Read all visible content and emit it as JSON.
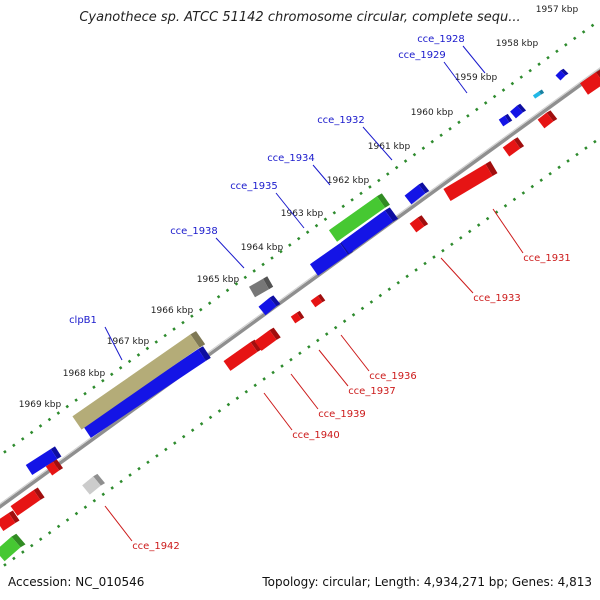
{
  "title": "Cyanothece sp. ATCC 51142 chromosome circular, complete sequ...",
  "footer": {
    "accession": "Accession: NC_010546",
    "summary": "Topology: circular; Length: 4,934,271 bp; Genes: 4,813"
  },
  "colors": {
    "backbone": "#8f8f8f",
    "tick": "#2e8b2e",
    "forward_label": "#1a1acc",
    "reverse_label": "#cc1a1a",
    "forward_gene": "#1414e6",
    "reverse_gene": "#e61414",
    "rna_gene": "#46c832",
    "pseudo_gene": "#b4ac78",
    "other_gene": "#777777",
    "light_gene": "#cccccc",
    "cyan_gene": "#22b8e6"
  },
  "scale": {
    "unit": "kbp",
    "ticks": [
      "1957 kbp",
      "1958 kbp",
      "1959 kbp",
      "1960 kbp",
      "1961 kbp",
      "1962 kbp",
      "1963 kbp",
      "1964 kbp",
      "1965 kbp",
      "1966 kbp",
      "1967 kbp",
      "1968 kbp",
      "1969 kbp"
    ]
  },
  "genes": {
    "forward": [
      "cce_1928",
      "cce_1929",
      "cce_1932",
      "cce_1934",
      "cce_1935",
      "cce_1938",
      "clpB1"
    ],
    "reverse": [
      "cce_1931",
      "cce_1933",
      "cce_1936",
      "cce_1937",
      "cce_1939",
      "cce_1940",
      "cce_1942"
    ]
  }
}
